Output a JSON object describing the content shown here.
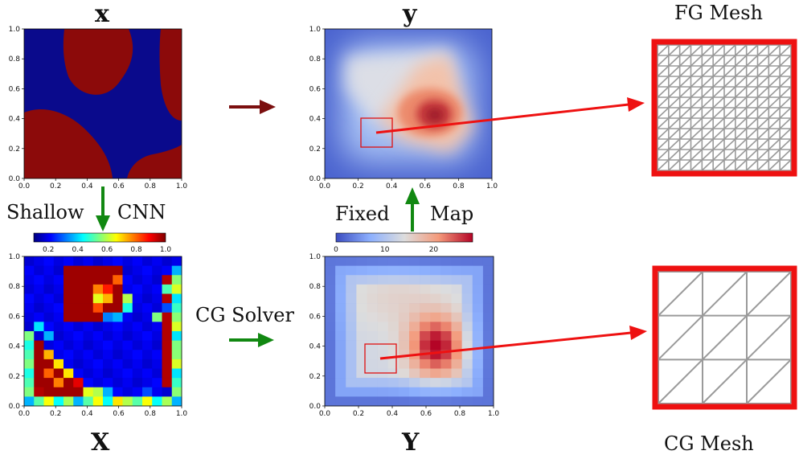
{
  "labels": {
    "x_top": "x",
    "y_top": "y",
    "fg_mesh": "FG Mesh",
    "shallow": "Shallow",
    "cnn": "CNN",
    "fixed": "Fixed",
    "map": "Map",
    "cg_solver": "CG Solver",
    "X_bottom": "X",
    "Y_bottom": "Y",
    "cg_mesh": "CG Mesh"
  },
  "axis_ticks": {
    "plot_ticks": [
      "0.0",
      "0.2",
      "0.4",
      "0.6",
      "0.8",
      "1.0"
    ],
    "jet_colorbar": [
      "0.2",
      "0.4",
      "0.6",
      "0.8",
      "1.0"
    ],
    "coolwarm_colorbar": [
      "0",
      "10",
      "20"
    ]
  },
  "colors": {
    "arrow_dark_red": "#7b0f0f",
    "arrow_green": "#118811",
    "mesh_red": "#ee1111",
    "mesh_gray": "#9a9a9a",
    "phase_blue": "#0a0a8c",
    "phase_red": "#8c0a0a"
  },
  "chart_data": [
    {
      "type": "heatmap",
      "subplot": "x (binary microstructure, top-left)",
      "xlim": [
        0,
        1
      ],
      "ylim": [
        0,
        1
      ],
      "colormap": "two-phase (blue / dark red)"
    },
    {
      "type": "heatmap",
      "subplot": "y (fine-grid field, top-center)",
      "xlim": [
        0,
        1
      ],
      "ylim": [
        0,
        1
      ],
      "colormap": "coolwarm",
      "peak_location": [
        0.62,
        0.4
      ]
    },
    {
      "type": "heatmap",
      "subplot": "X (coarse CNN output, bottom-left)",
      "xlim": [
        0,
        1
      ],
      "ylim": [
        0,
        1
      ],
      "colormap": "jet",
      "clim": [
        0.1,
        1.0
      ]
    },
    {
      "type": "heatmap",
      "subplot": "Y (coarse solver field, bottom-center)",
      "xlim": [
        0,
        1
      ],
      "ylim": [
        0,
        1
      ],
      "colormap": "coolwarm",
      "clim": [
        0,
        28
      ],
      "peak_location": [
        0.65,
        0.4
      ]
    }
  ]
}
